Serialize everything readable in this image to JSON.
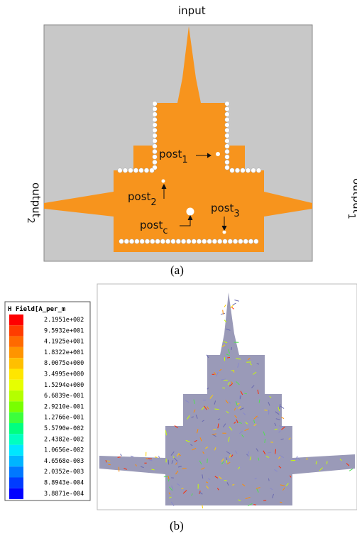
{
  "panel_a": {
    "input": "input",
    "output_1": {
      "text": "output",
      "sub": "1"
    },
    "output_2": {
      "text": "output",
      "sub": "2"
    },
    "post_1": {
      "text": "post",
      "sub": "1"
    },
    "post_2": {
      "text": "post",
      "sub": "2"
    },
    "post_3": {
      "text": "post",
      "sub": "3"
    },
    "post_c": {
      "text": "post",
      "sub": "c"
    },
    "caption": "(a)"
  },
  "panel_b": {
    "legend_title": "H Field[A_per_m",
    "legend_values": [
      "2.1951e+002",
      "9.5932e+001",
      "4.1925e+001",
      "1.8322e+001",
      "8.0075e+000",
      "3.4995e+000",
      "1.5294e+000",
      "6.6839e-001",
      "2.9210e-001",
      "1.2766e-001",
      "5.5790e-002",
      "2.4382e-002",
      "1.0656e-002",
      "4.6568e-003",
      "2.0352e-003",
      "8.8943e-004",
      "3.8871e-004"
    ],
    "caption": "(b)"
  }
}
